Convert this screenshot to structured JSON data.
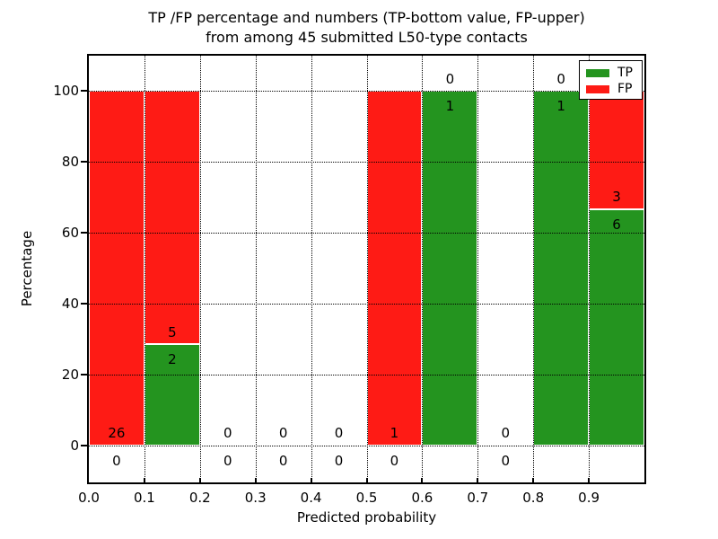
{
  "title": {
    "line1": "TP /FP percentage and numbers (TP-bottom value, FP-upper)",
    "line2": "from among 45 submitted L50-type contacts"
  },
  "axes": {
    "xlabel": "Predicted probability",
    "ylabel": "Percentage",
    "xticks": [
      "0.0",
      "0.1",
      "0.2",
      "0.3",
      "0.4",
      "0.5",
      "0.6",
      "0.7",
      "0.8",
      "0.9"
    ],
    "yticks": [
      0,
      20,
      40,
      60,
      80,
      100
    ],
    "ylim": [
      -10.5,
      110
    ],
    "xlim": [
      0.0,
      1.0
    ],
    "grid": "dotted, drawn above bars"
  },
  "legend": {
    "position": "upper right",
    "items": [
      {
        "label": "TP",
        "color": "#24941f"
      },
      {
        "label": "FP",
        "color": "#fe1b15"
      }
    ]
  },
  "colors": {
    "tp_green": "#24941f",
    "fp_red": "#fe1b15",
    "grid": "#000000",
    "text": "#000000",
    "bar_edge": "#ffffff",
    "background": "#ffffff"
  },
  "chart_data": {
    "type": "bar",
    "stacked": true,
    "title": "TP /FP percentage and numbers (TP-bottom value, FP-upper) from among 45 submitted L50-type contacts",
    "xlabel": "Predicted probability",
    "ylabel": "Percentage",
    "ylim": [
      -10.5,
      110
    ],
    "total_contacts": 45,
    "label_rule": "FP count printed above top of TP segment, TP count printed below it",
    "bins": [
      {
        "range": [
          0.0,
          0.1
        ],
        "tp": 0,
        "fp": 26,
        "tp_pct": 0,
        "fp_pct": 100
      },
      {
        "range": [
          0.1,
          0.2
        ],
        "tp": 2,
        "fp": 5,
        "tp_pct": 28.57,
        "fp_pct": 71.43
      },
      {
        "range": [
          0.2,
          0.3
        ],
        "tp": 0,
        "fp": 0,
        "tp_pct": 0,
        "fp_pct": 0
      },
      {
        "range": [
          0.3,
          0.4
        ],
        "tp": 0,
        "fp": 0,
        "tp_pct": 0,
        "fp_pct": 0
      },
      {
        "range": [
          0.4,
          0.5
        ],
        "tp": 0,
        "fp": 0,
        "tp_pct": 0,
        "fp_pct": 0
      },
      {
        "range": [
          0.5,
          0.6
        ],
        "tp": 0,
        "fp": 1,
        "tp_pct": 0,
        "fp_pct": 100
      },
      {
        "range": [
          0.6,
          0.7
        ],
        "tp": 1,
        "fp": 0,
        "tp_pct": 100,
        "fp_pct": 0
      },
      {
        "range": [
          0.7,
          0.8
        ],
        "tp": 0,
        "fp": 0,
        "tp_pct": 0,
        "fp_pct": 0
      },
      {
        "range": [
          0.8,
          0.9
        ],
        "tp": 1,
        "fp": 0,
        "tp_pct": 100,
        "fp_pct": 0
      },
      {
        "range": [
          0.9,
          1.0
        ],
        "tp": 6,
        "fp": 3,
        "tp_pct": 66.67,
        "fp_pct": 33.33
      }
    ],
    "series": [
      {
        "name": "TP",
        "counts": [
          0,
          2,
          0,
          0,
          0,
          0,
          1,
          0,
          1,
          6
        ]
      },
      {
        "name": "FP",
        "counts": [
          26,
          5,
          0,
          0,
          0,
          1,
          0,
          0,
          0,
          3
        ]
      }
    ]
  }
}
